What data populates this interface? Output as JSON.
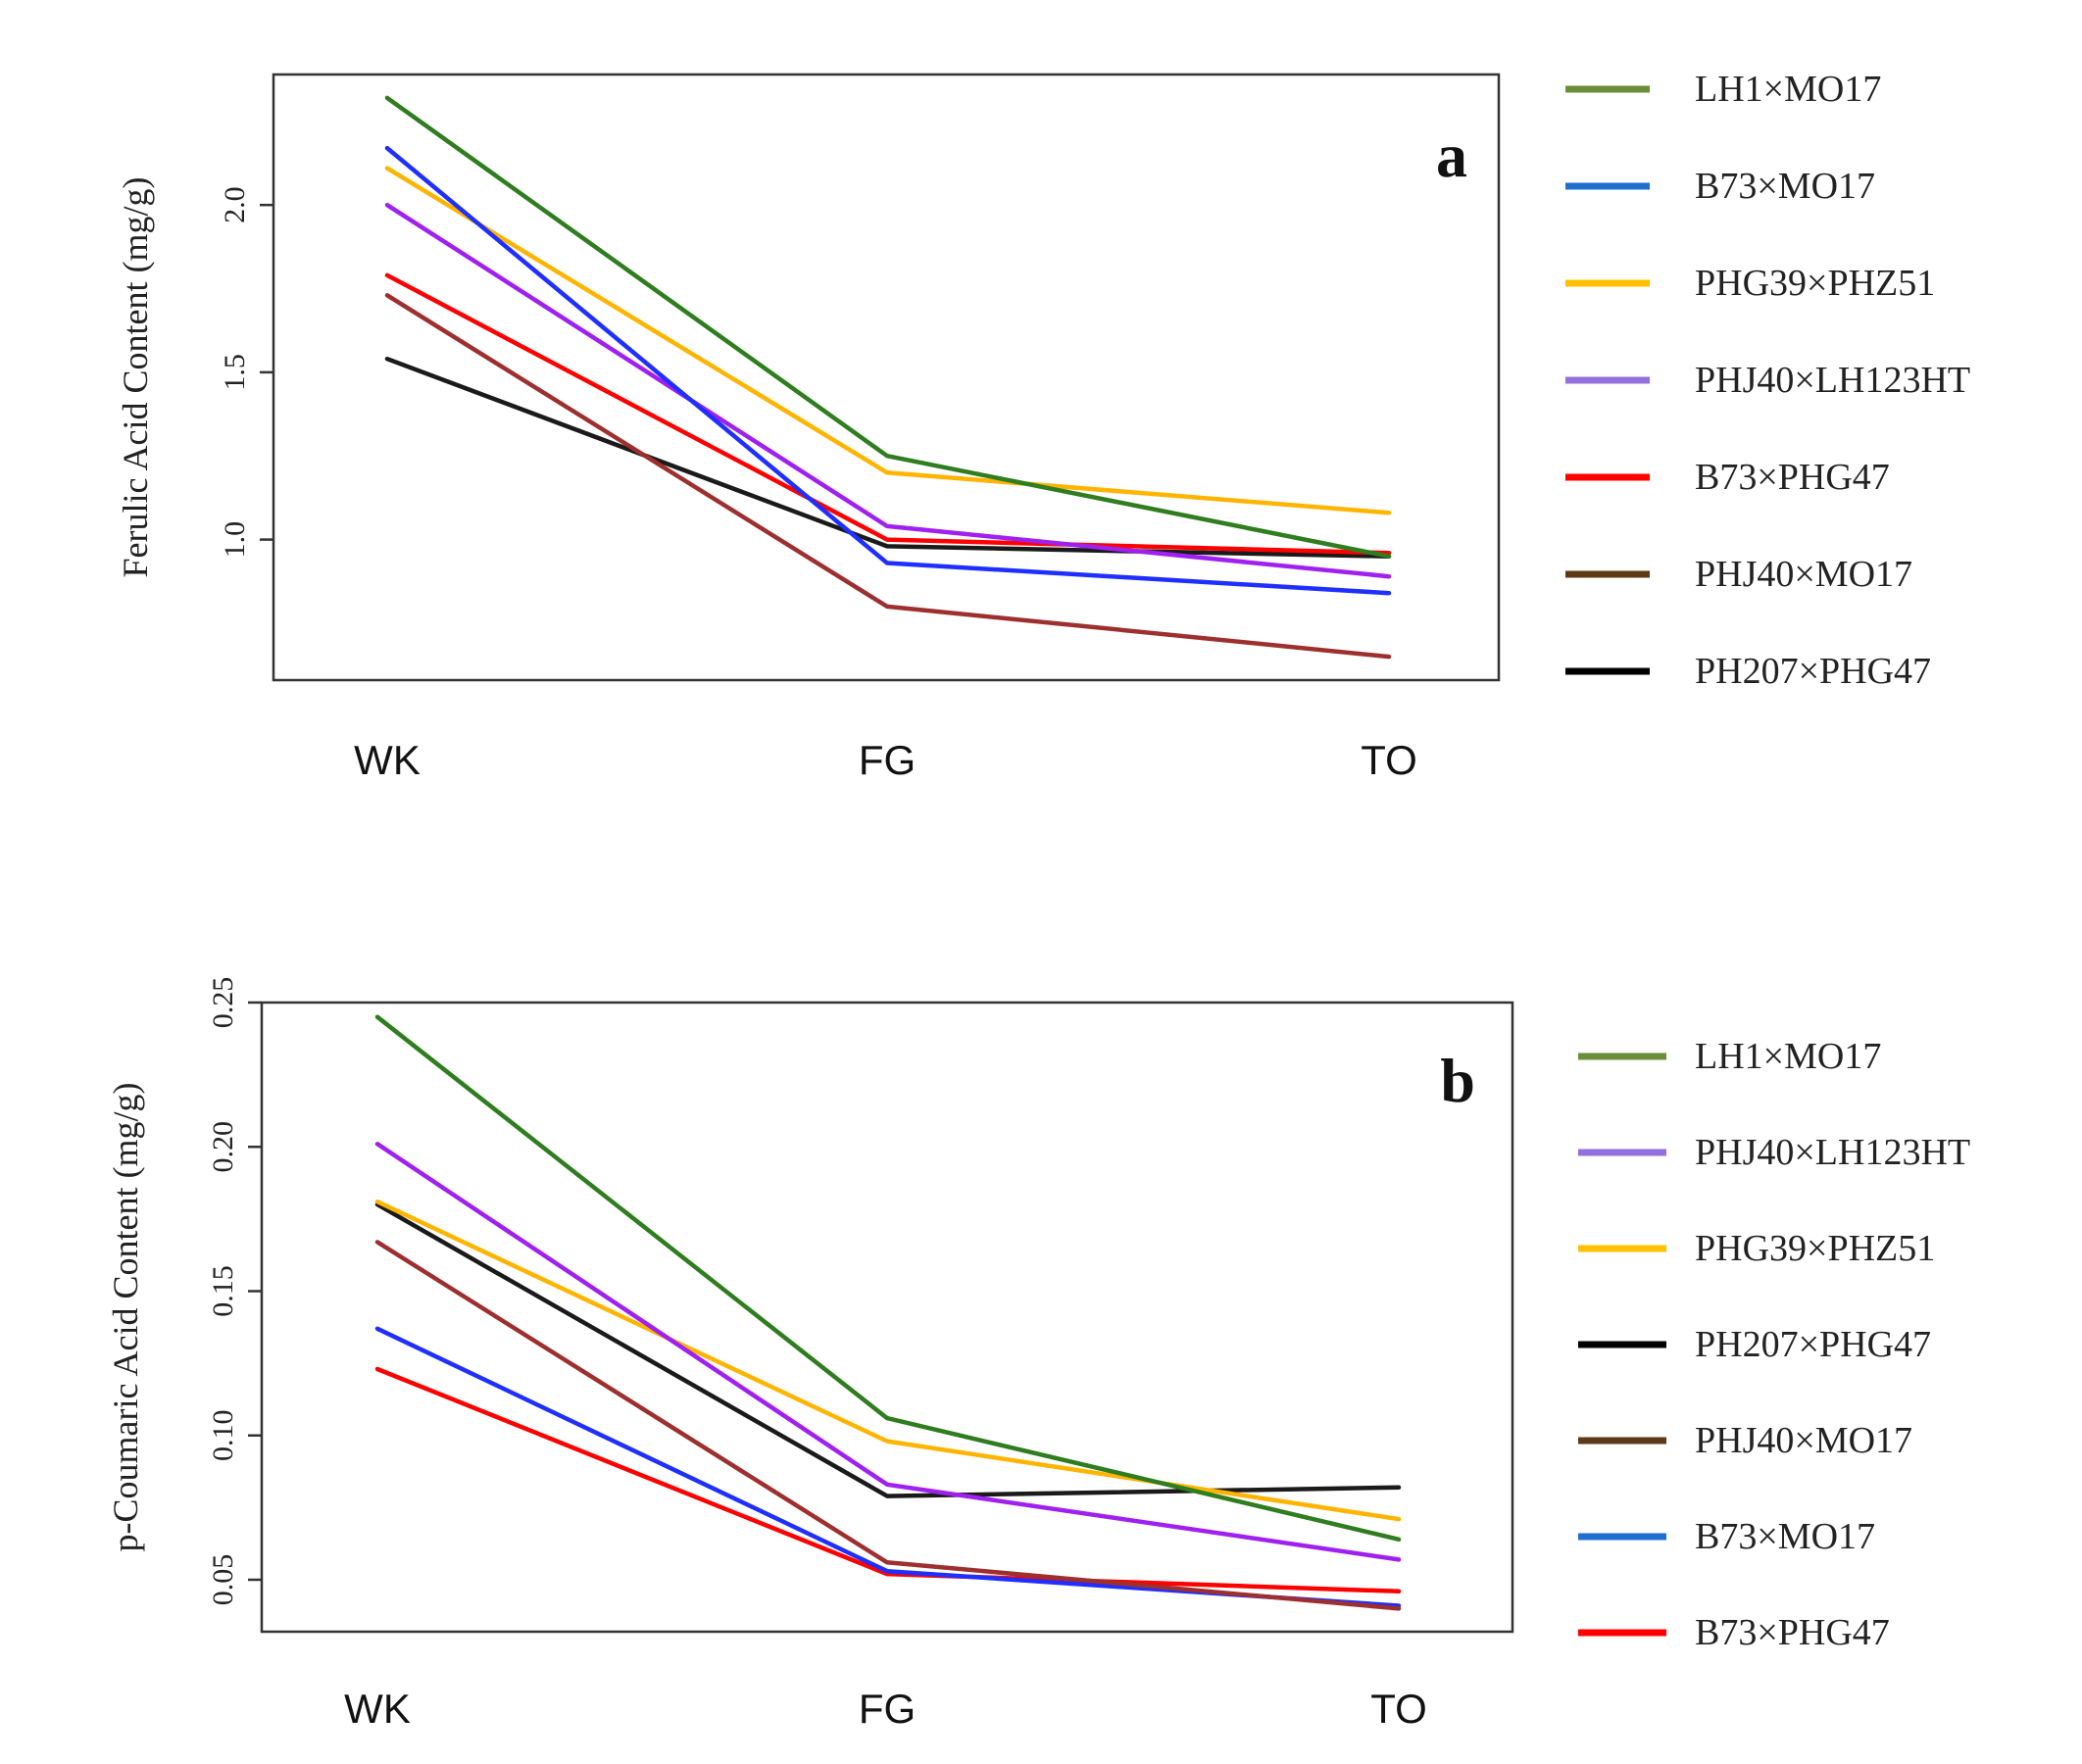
{
  "colors": {
    "green": "#2e7d1e",
    "blue": "#1f2fff",
    "orange": "#ffb400",
    "purple": "#a020f0",
    "red": "#ff0000",
    "brown": "#9e2f2f",
    "black": "#1a1a1a",
    "legend_green": "#6b8e3a",
    "legend_blue": "#1e6fd0",
    "legend_orange": "#ffc000",
    "legend_purple": "#9370db",
    "legend_red": "#ff0000",
    "legend_brown": "#5c3a18",
    "legend_black": "#000000"
  },
  "chart_data": [
    {
      "type": "line",
      "panel_label": "a",
      "ylabel": "Ferulic Acid Content (mg/g)",
      "xlabel": "",
      "categories": [
        "WK",
        "FG",
        "TO"
      ],
      "ylim": [
        0.58,
        2.39
      ],
      "yticks": [
        "1.0",
        "1.5",
        "2.0"
      ],
      "legend": {
        "placement": "outside-right",
        "entries": [
          {
            "label": "LH1×MO17",
            "color": "#6b8e3a"
          },
          {
            "label": "B73×MO17",
            "color": "#1e6fd0"
          },
          {
            "label": "PHG39×PHZ51",
            "color": "#ffc000"
          },
          {
            "label": "PHJ40×LH123HT",
            "color": "#9370db"
          },
          {
            "label": "B73×PHG47",
            "color": "#ff0000"
          },
          {
            "label": "PHJ40×MO17",
            "color": "#5c3a18"
          },
          {
            "label": "PH207×PHG47",
            "color": "#000000"
          }
        ]
      },
      "series": [
        {
          "name": "PH207×PHG47",
          "color": "#1a1a1a",
          "values": [
            1.54,
            0.98,
            0.95
          ]
        },
        {
          "name": "PHJ40×MO17",
          "color": "#9e2f2f",
          "values": [
            1.73,
            0.8,
            0.65
          ]
        },
        {
          "name": "B73×PHG47",
          "color": "#ff0000",
          "values": [
            1.79,
            1.0,
            0.96
          ]
        },
        {
          "name": "PHJ40×LH123HT",
          "color": "#a020f0",
          "values": [
            2.0,
            1.04,
            0.89
          ]
        },
        {
          "name": "PHG39×PHZ51",
          "color": "#ffb400",
          "values": [
            2.11,
            1.2,
            1.08
          ]
        },
        {
          "name": "B73×MO17",
          "color": "#1f2fff",
          "values": [
            2.17,
            0.93,
            0.84
          ]
        },
        {
          "name": "LH1×MO17",
          "color": "#2e7d1e",
          "values": [
            2.32,
            1.25,
            0.95
          ]
        }
      ]
    },
    {
      "type": "line",
      "panel_label": "b",
      "ylabel": "p-Coumaric  Acid Content (mg/g)",
      "xlabel": "",
      "categories": [
        "WK",
        "FG",
        "TO"
      ],
      "ylim": [
        0.032,
        0.25
      ],
      "yticks": [
        "0.05",
        "0.10",
        "0.15",
        "0.20",
        "0.25"
      ],
      "legend": {
        "placement": "outside-right",
        "entries": [
          {
            "label": "LH1×MO17",
            "color": "#6b8e3a"
          },
          {
            "label": "PHJ40×LH123HT",
            "color": "#9370db"
          },
          {
            "label": "PHG39×PHZ51",
            "color": "#ffc000"
          },
          {
            "label": "PH207×PHG47",
            "color": "#000000"
          },
          {
            "label": "PHJ40×MO17",
            "color": "#5c3a18"
          },
          {
            "label": "B73×MO17",
            "color": "#1e6fd0"
          },
          {
            "label": "B73×PHG47",
            "color": "#ff0000"
          }
        ]
      },
      "series": [
        {
          "name": "B73×PHG47",
          "color": "#ff0000",
          "values": [
            0.123,
            0.052,
            0.046
          ]
        },
        {
          "name": "B73×MO17",
          "color": "#1f2fff",
          "values": [
            0.137,
            0.053,
            0.041
          ]
        },
        {
          "name": "PHJ40×MO17",
          "color": "#9e2f2f",
          "values": [
            0.167,
            0.056,
            0.04
          ]
        },
        {
          "name": "PH207×PHG47",
          "color": "#1a1a1a",
          "values": [
            0.18,
            0.079,
            0.082
          ]
        },
        {
          "name": "PHG39×PHZ51",
          "color": "#ffb400",
          "values": [
            0.181,
            0.098,
            0.071
          ]
        },
        {
          "name": "PHJ40×LH123HT",
          "color": "#a020f0",
          "values": [
            0.201,
            0.083,
            0.057
          ]
        },
        {
          "name": "LH1×MO17",
          "color": "#2e7d1e",
          "values": [
            0.245,
            0.106,
            0.064
          ]
        }
      ]
    }
  ]
}
